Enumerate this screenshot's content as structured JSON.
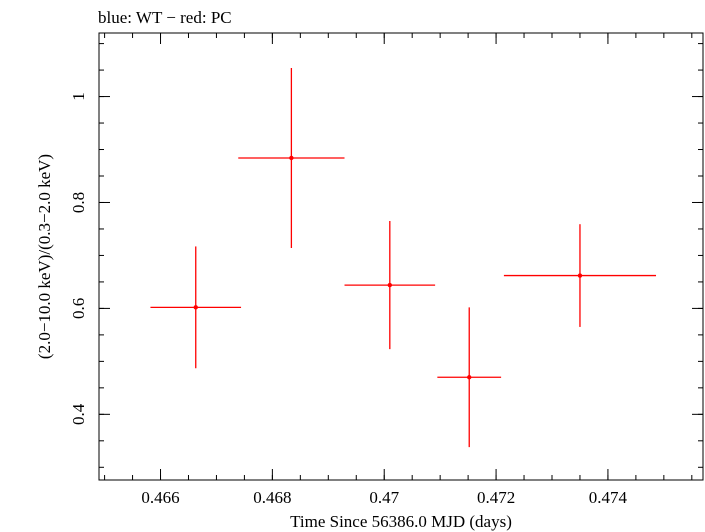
{
  "chart_data": {
    "type": "scatter",
    "title": "blue: WT − red: PC",
    "xlabel": "Time Since 56386.0 MJD (days)",
    "ylabel": "(2.0−10.0 keV)/(0.3−2.0 keV)",
    "xlim": [
      0.4649,
      0.4757
    ],
    "ylim": [
      0.276,
      1.12
    ],
    "x_ticks": [
      {
        "value": 0.466,
        "label": "0.466"
      },
      {
        "value": 0.468,
        "label": "0.468"
      },
      {
        "value": 0.47,
        "label": "0.47"
      },
      {
        "value": 0.472,
        "label": "0.472"
      },
      {
        "value": 0.474,
        "label": "0.474"
      }
    ],
    "y_ticks": [
      {
        "value": 0.4,
        "label": "0.4"
      },
      {
        "value": 0.6,
        "label": "0.6"
      },
      {
        "value": 0.8,
        "label": "0.8"
      },
      {
        "value": 1.0,
        "label": "1"
      }
    ],
    "x_minor_step": 0.0005,
    "y_minor_step": 0.05,
    "series": [
      {
        "name": "PC",
        "color": "#ff0000",
        "points": [
          {
            "x": 0.46663,
            "xerr": 0.00081,
            "y": 0.602,
            "yerr": 0.115
          },
          {
            "x": 0.46834,
            "xerr": 0.00095,
            "y": 0.884,
            "yerr": 0.17
          },
          {
            "x": 0.4701,
            "xerr": 0.00081,
            "y": 0.644,
            "yerr": 0.121
          },
          {
            "x": 0.47152,
            "xerr": 0.00057,
            "y": 0.47,
            "yerr": 0.132
          },
          {
            "x": 0.4735,
            "xerr": 0.00136,
            "y": 0.662,
            "yerr": 0.097
          }
        ]
      }
    ]
  }
}
